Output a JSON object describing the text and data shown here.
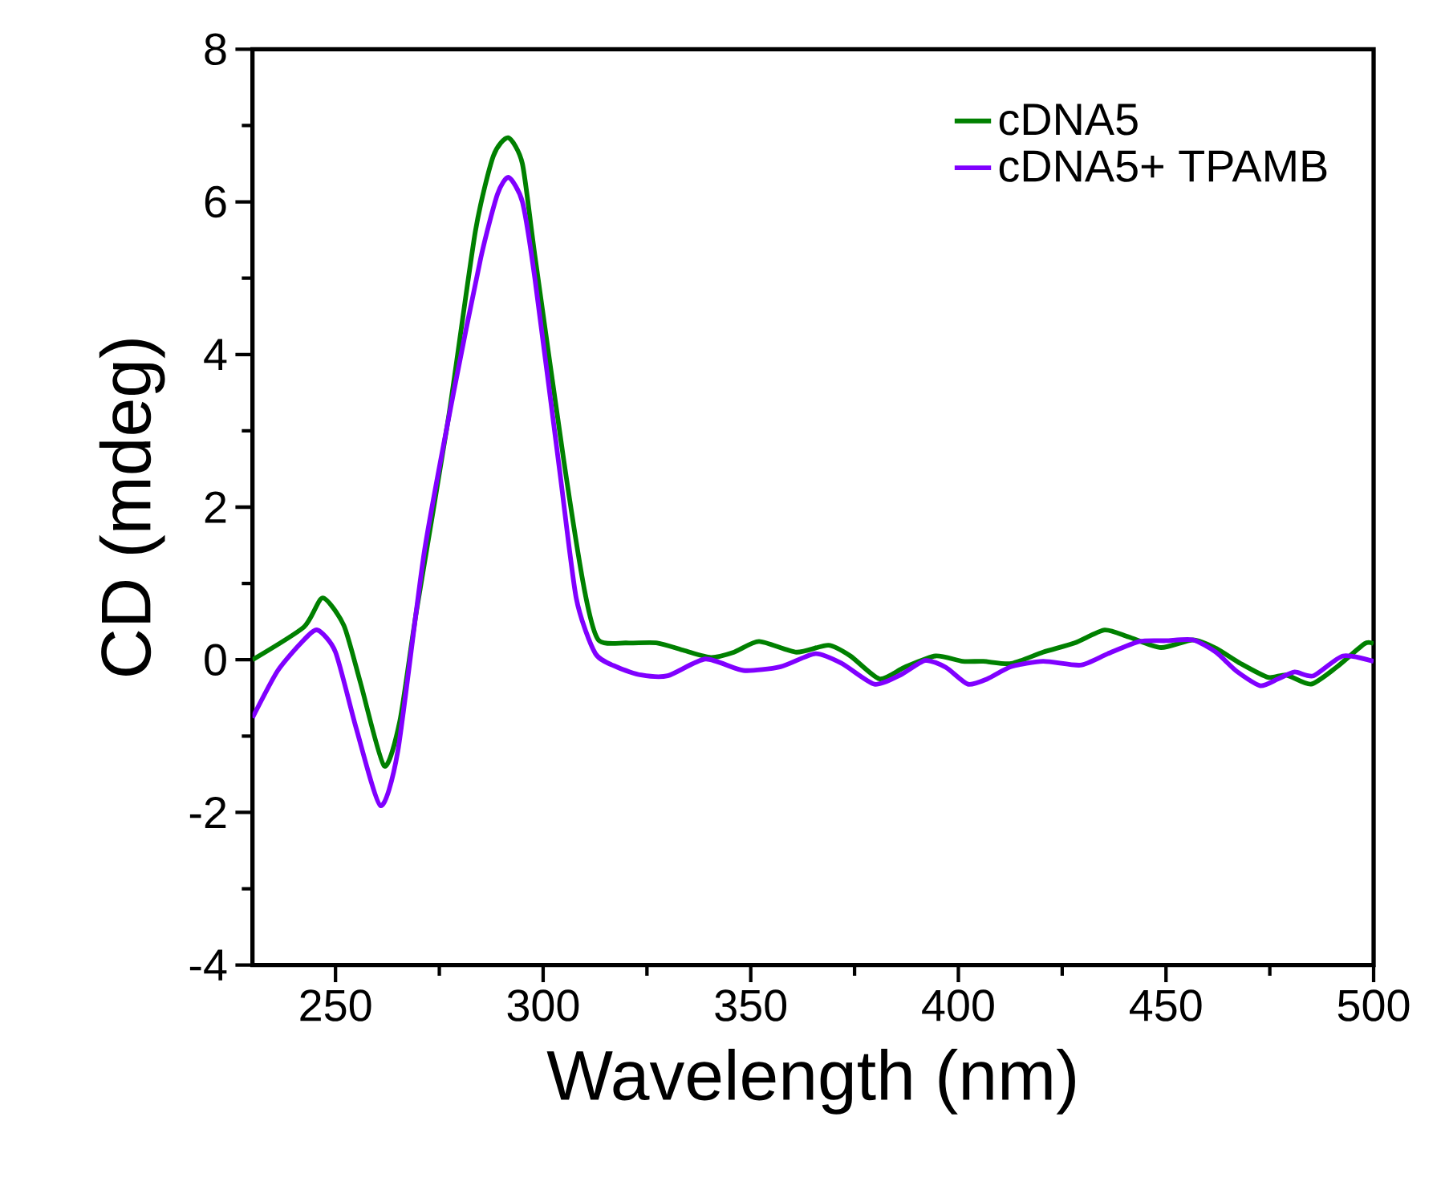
{
  "chart_data": {
    "type": "line",
    "xlabel": "Wavelength (nm)",
    "ylabel": "CD (mdeg)",
    "xlim": [
      230,
      500
    ],
    "ylim": [
      -4,
      8
    ],
    "xticks": [
      250,
      300,
      350,
      400,
      450,
      500
    ],
    "yticks": [
      -4,
      -2,
      0,
      2,
      4,
      6,
      8
    ],
    "legend": "top right",
    "grid": false,
    "marker": "none",
    "line_style": "solid",
    "series": [
      {
        "name": "cDNA5",
        "color": "#008000",
        "x": [
          230,
          242.4,
          246.9,
          252,
          256,
          261.7,
          265.5,
          269.5,
          277.2,
          283.7,
          288,
          291.6,
          295,
          298,
          305,
          310,
          313.3,
          320,
          327.5,
          334,
          340.4,
          346,
          352,
          361,
          368.7,
          374,
          381,
          387,
          394.5,
          401,
          406,
          412.7,
          420.4,
          428,
          435.2,
          441,
          448.8,
          456.5,
          462,
          468,
          474.6,
          479,
          484.9,
          491,
          497.8,
          500
        ],
        "values": [
          0,
          0.43,
          0.81,
          0.45,
          -0.3,
          -1.39,
          -0.8,
          0.64,
          3.17,
          5.62,
          6.6,
          6.84,
          6.5,
          5.3,
          2.6,
          0.9,
          0.26,
          0.22,
          0.22,
          0.12,
          0.03,
          0.1,
          0.24,
          0.1,
          0.19,
          0.05,
          -0.25,
          -0.1,
          0.05,
          -0.02,
          -0.02,
          -0.05,
          0.1,
          0.22,
          0.39,
          0.3,
          0.16,
          0.26,
          0.15,
          -0.05,
          -0.23,
          -0.2,
          -0.32,
          -0.1,
          0.21,
          0.21
        ]
      },
      {
        "name": "cDNA5+ TPAMB",
        "color": "#8000ff",
        "x": [
          230,
          236,
          241.7,
          245.6,
          250,
          255,
          260.8,
          265,
          271.4,
          278.5,
          285,
          289,
          291.7,
          295,
          298,
          304,
          308,
          312.6,
          318,
          323.6,
          330,
          339.1,
          348.2,
          357.2,
          365.6,
          372,
          379.8,
          386,
          392,
          397,
          402.3,
          407,
          412.7,
          420.4,
          429.4,
          436,
          443.6,
          450,
          456.5,
          462,
          467,
          472.7,
          477,
          481,
          485.5,
          492.6,
          500
        ],
        "values": [
          -0.76,
          -0.15,
          0.22,
          0.39,
          0.1,
          -0.9,
          -1.91,
          -1.2,
          1.42,
          3.52,
          5.27,
          6.1,
          6.32,
          6.0,
          5.0,
          2.47,
          0.8,
          0.08,
          -0.1,
          -0.2,
          -0.21,
          0.01,
          -0.14,
          -0.09,
          0.08,
          -0.05,
          -0.32,
          -0.2,
          -0.01,
          -0.1,
          -0.32,
          -0.25,
          -0.09,
          -0.02,
          -0.07,
          0.08,
          0.24,
          0.25,
          0.26,
          0.1,
          -0.15,
          -0.34,
          -0.25,
          -0.16,
          -0.21,
          0.05,
          -0.02
        ]
      }
    ]
  }
}
